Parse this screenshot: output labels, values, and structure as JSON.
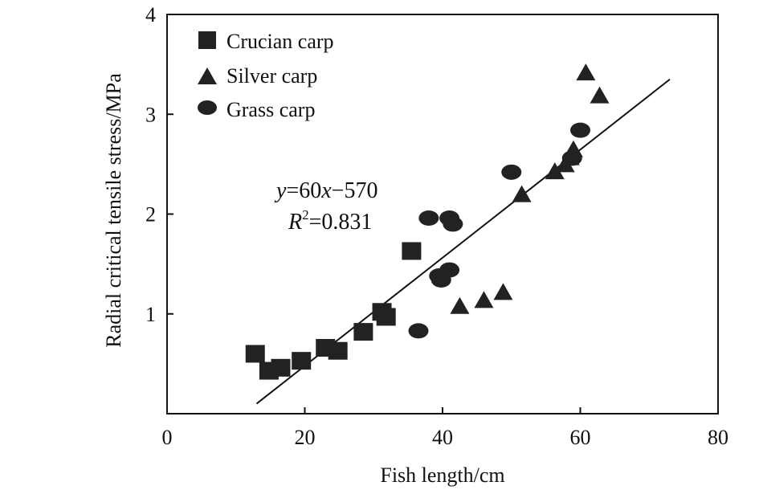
{
  "chart_data": {
    "type": "scatter",
    "title": "",
    "xlabel": "Fish length/cm",
    "ylabel": "Radial critical tensile stress/MPa",
    "xlim": [
      0,
      80
    ],
    "ylim": [
      0,
      4
    ],
    "x_ticks": [
      "0",
      "20",
      "40",
      "60",
      "80"
    ],
    "y_ticks": [
      "1",
      "2",
      "3",
      "4"
    ],
    "grid": false,
    "legend_position": "top-left",
    "series": [
      {
        "name": "Crucian carp",
        "marker": "square",
        "color": "#222222",
        "points": [
          [
            12.8,
            0.6
          ],
          [
            14.8,
            0.43
          ],
          [
            16.5,
            0.46
          ],
          [
            19.5,
            0.53
          ],
          [
            23.0,
            0.66
          ],
          [
            24.8,
            0.63
          ],
          [
            28.5,
            0.82
          ],
          [
            31.2,
            1.02
          ],
          [
            31.8,
            0.97
          ],
          [
            35.5,
            1.63
          ]
        ]
      },
      {
        "name": "Silver carp",
        "marker": "triangle",
        "color": "#222222",
        "points": [
          [
            42.5,
            1.08
          ],
          [
            46.0,
            1.14
          ],
          [
            48.8,
            1.22
          ],
          [
            51.5,
            2.2
          ],
          [
            56.3,
            2.43
          ],
          [
            57.8,
            2.5
          ],
          [
            58.5,
            2.57
          ],
          [
            59.0,
            2.65
          ],
          [
            60.8,
            3.42
          ],
          [
            62.8,
            3.19
          ]
        ]
      },
      {
        "name": "Grass carp",
        "marker": "circle",
        "color": "#222222",
        "points": [
          [
            36.5,
            0.83
          ],
          [
            38.0,
            1.96
          ],
          [
            39.5,
            1.38
          ],
          [
            39.8,
            1.34
          ],
          [
            41.0,
            1.44
          ],
          [
            41.0,
            1.96
          ],
          [
            41.5,
            1.9
          ],
          [
            50.0,
            2.42
          ],
          [
            58.8,
            2.56
          ],
          [
            60.0,
            2.84
          ]
        ]
      }
    ],
    "fit_line": {
      "x": [
        13,
        73
      ],
      "y": [
        0.1,
        3.35
      ]
    },
    "annotation": {
      "equation": {
        "y": "y",
        "eq": "=60",
        "x": "x",
        "rest": "−570"
      },
      "r2": {
        "R": "R",
        "sup": "2",
        "rest": "=0.831"
      }
    }
  }
}
